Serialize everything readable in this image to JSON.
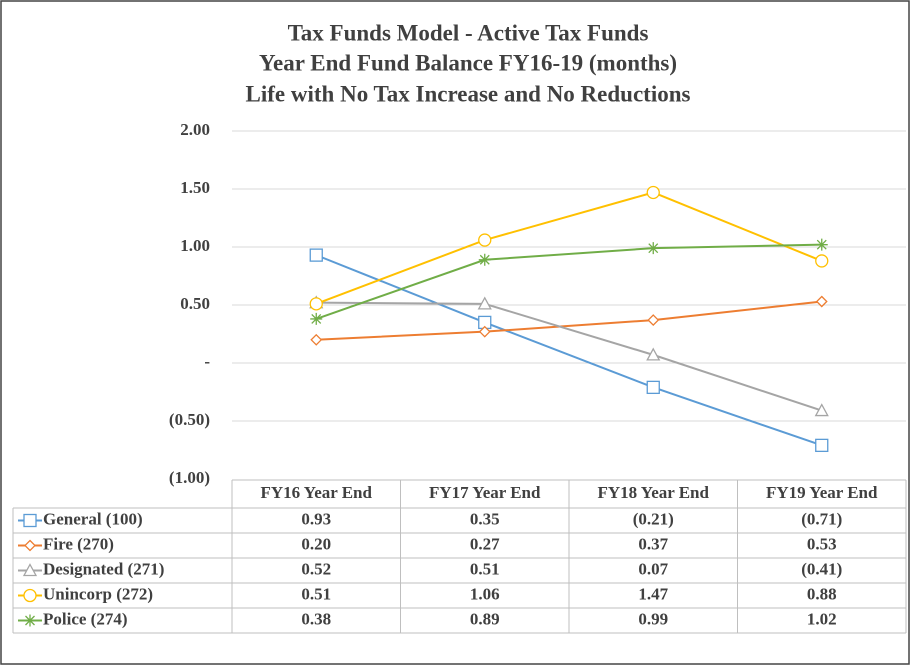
{
  "chart_data": {
    "type": "line",
    "title": [
      "Tax Funds Model -  Active Tax Funds",
      "Year End Fund Balance FY16-19 (months)",
      "Life with No Tax Increase and No Reductions"
    ],
    "categories": [
      "FY16 Year End",
      "FY17 Year End",
      "FY18 Year End",
      "FY19 Year End"
    ],
    "ylim": [
      -1,
      2
    ],
    "yticks": [
      {
        "value": -1,
        "label": "(1.00)"
      },
      {
        "value": -0.5,
        "label": "(0.50)"
      },
      {
        "value": 0,
        "label": "-"
      },
      {
        "value": 0.5,
        "label": "0.50"
      },
      {
        "value": 1,
        "label": "1.00"
      },
      {
        "value": 1.5,
        "label": "1.50"
      },
      {
        "value": 2,
        "label": "2.00"
      }
    ],
    "grid": true,
    "series": [
      {
        "name": "General (100)",
        "color": "#5b9bd5",
        "marker": "square",
        "values": [
          0.93,
          0.35,
          -0.21,
          -0.71
        ],
        "value_labels": [
          "0.93",
          "0.35",
          "(0.21)",
          "(0.71)"
        ]
      },
      {
        "name": "Fire (270)",
        "color": "#ed7d31",
        "marker": "diamond",
        "values": [
          0.2,
          0.27,
          0.37,
          0.53
        ],
        "value_labels": [
          "0.20",
          "0.27",
          "0.37",
          "0.53"
        ]
      },
      {
        "name": "Designated (271)",
        "color": "#a5a5a5",
        "marker": "triangle",
        "values": [
          0.52,
          0.51,
          0.07,
          -0.41
        ],
        "value_labels": [
          "0.52",
          "0.51",
          "0.07",
          "(0.41)"
        ]
      },
      {
        "name": "Unincorp (272)",
        "color": "#ffc000",
        "marker": "circle",
        "values": [
          0.51,
          1.06,
          1.47,
          0.88
        ],
        "value_labels": [
          "0.51",
          "1.06",
          "1.47",
          "0.88"
        ]
      },
      {
        "name": "Police (274)",
        "color": "#70ad47",
        "marker": "star",
        "values": [
          0.38,
          0.89,
          0.99,
          1.02
        ],
        "value_labels": [
          "0.38",
          "0.89",
          "0.99",
          "1.02"
        ]
      }
    ]
  }
}
